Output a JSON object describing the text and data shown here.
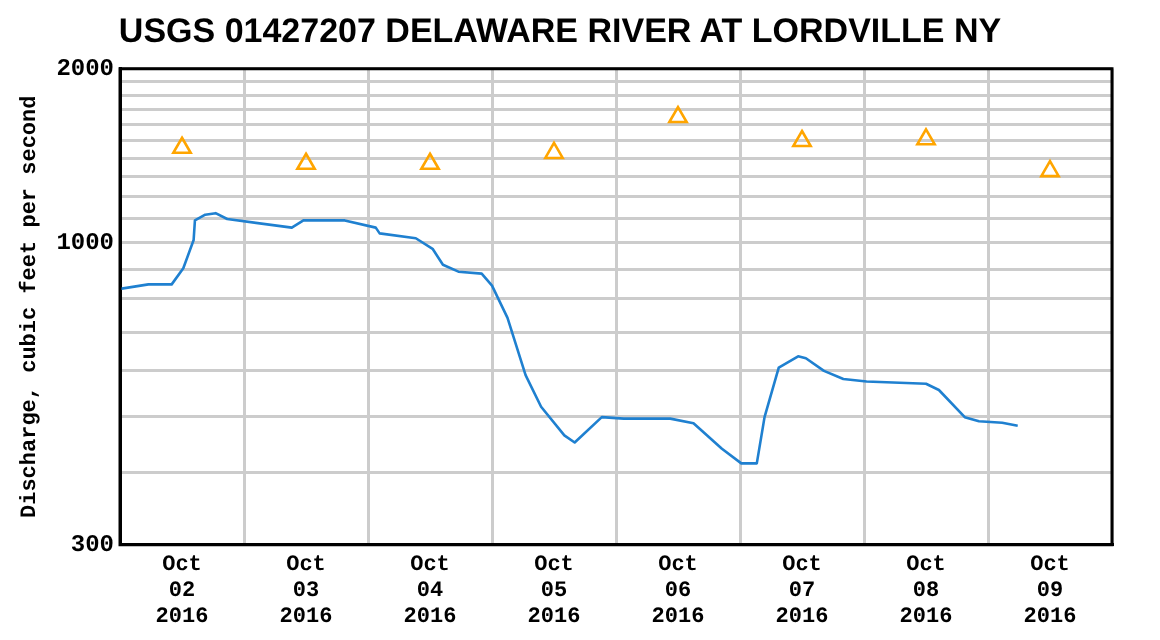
{
  "chart_data": {
    "type": "line",
    "title": "USGS 01427207 DELAWARE RIVER AT LORDVILLE NY",
    "ylabel": "Discharge, cubic feet per second",
    "log": "y",
    "grid": true,
    "legend": false,
    "xlim": [
      "2016-10-02T00:00",
      "2016-10-10T00:00"
    ],
    "xticks": [
      {
        "value": "2016-10-02T00:00",
        "label": null
      },
      {
        "value": "2016-10-02T12:00",
        "label": "Oct\n02\n2016"
      },
      {
        "value": "2016-10-03T00:00",
        "label": null
      },
      {
        "value": "2016-10-03T12:00",
        "label": "Oct\n03\n2016"
      },
      {
        "value": "2016-10-04T00:00",
        "label": null
      },
      {
        "value": "2016-10-04T12:00",
        "label": "Oct\n04\n2016"
      },
      {
        "value": "2016-10-05T00:00",
        "label": null
      },
      {
        "value": "2016-10-05T12:00",
        "label": "Oct\n05\n2016"
      },
      {
        "value": "2016-10-06T00:00",
        "label": null
      },
      {
        "value": "2016-10-06T12:00",
        "label": "Oct\n06\n2016"
      },
      {
        "value": "2016-10-07T00:00",
        "label": null
      },
      {
        "value": "2016-10-07T12:00",
        "label": "Oct\n07\n2016"
      },
      {
        "value": "2016-10-08T00:00",
        "label": null
      },
      {
        "value": "2016-10-08T12:00",
        "label": "Oct\n08\n2016"
      },
      {
        "value": "2016-10-09T00:00",
        "label": null
      },
      {
        "value": "2016-10-09T12:00",
        "label": "Oct\n09\n2016"
      },
      {
        "value": "2016-10-10T00:00",
        "label": null
      }
    ],
    "ylim": [
      300,
      2000
    ],
    "yticks": [
      300,
      {
        "value": 400,
        "label": null
      },
      {
        "value": 500,
        "label": null
      },
      {
        "value": 600,
        "label": null
      },
      {
        "value": 700,
        "label": null
      },
      {
        "value": 800,
        "label": null
      },
      {
        "value": 900,
        "label": null
      },
      1000,
      {
        "value": 1100,
        "label": null
      },
      {
        "value": 1200,
        "label": null
      },
      {
        "value": 1300,
        "label": null
      },
      {
        "value": 1400,
        "label": null
      },
      {
        "value": 1500,
        "label": null
      },
      {
        "value": 1600,
        "label": null
      },
      {
        "value": 1700,
        "label": null
      },
      {
        "value": 1800,
        "label": null
      },
      {
        "value": 1900,
        "label": null
      },
      2000
    ],
    "series": [
      {
        "color": "#1f80d0",
        "marker": "none",
        "x": [
          "2016-10-02T00:00",
          "2016-10-02T05:30",
          "2016-10-02T10:00",
          "2016-10-02T12:15",
          "2016-10-02T14:15",
          "2016-10-02T14:30",
          "2016-10-02T16:30",
          "2016-10-02T18:30",
          "2016-10-02T20:45",
          "2016-10-03T09:15",
          "2016-10-03T11:30",
          "2016-10-03T19:30",
          "2016-10-04T01:30",
          "2016-10-04T02:15",
          "2016-10-04T09:15",
          "2016-10-04T12:30",
          "2016-10-04T14:30",
          "2016-10-04T17:30",
          "2016-10-04T22:00",
          "2016-10-05T00:00",
          "2016-10-05T03:00",
          "2016-10-05T06:30",
          "2016-10-05T09:30",
          "2016-10-05T14:00",
          "2016-10-05T16:00",
          "2016-10-05T21:15",
          "2016-10-06T01:30",
          "2016-10-06T10:30",
          "2016-10-06T15:00",
          "2016-10-06T20:30",
          "2016-10-07T00:15",
          "2016-10-07T03:15",
          "2016-10-07T04:45",
          "2016-10-07T07:30",
          "2016-10-07T11:15",
          "2016-10-07T12:45",
          "2016-10-07T16:15",
          "2016-10-07T20:00",
          "2016-10-08T00:30",
          "2016-10-08T12:00",
          "2016-10-08T14:30",
          "2016-10-08T19:30",
          "2016-10-08T22:15",
          "2016-10-09T02:45",
          "2016-10-09T05:45"
        ],
        "values": [
          832,
          847,
          847,
          903,
          1011,
          1093,
          1118,
          1125,
          1099,
          1062,
          1093,
          1093,
          1062,
          1038,
          1018,
          976,
          916,
          891,
          884,
          843,
          741,
          590,
          520,
          464,
          451,
          499,
          496,
          496,
          487,
          440,
          415,
          415,
          499,
          608,
          636,
          631,
          600,
          581,
          575,
          570,
          556,
          499,
          491,
          488,
          482
        ]
      },
      {
        "type": "scatter",
        "color": "#ffa500",
        "marker": "triangle",
        "x": [
          "2016-10-02T12:00",
          "2016-10-03T12:00",
          "2016-10-04T12:00",
          "2016-10-05T12:00",
          "2016-10-06T12:00",
          "2016-10-07T12:00",
          "2016-10-08T12:00",
          "2016-10-09T12:00"
        ],
        "values": [
          1460,
          1370,
          1370,
          1430,
          1650,
          1500,
          1510,
          1330
        ]
      }
    ]
  }
}
